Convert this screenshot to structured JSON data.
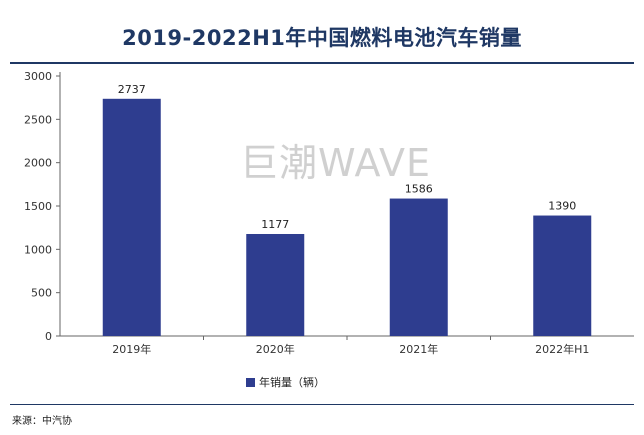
{
  "chart_data": {
    "type": "bar",
    "title": "2019-2022H1年中国燃料电池汽车销量",
    "categories": [
      "2019年",
      "2020年",
      "2021年",
      "2022年H1"
    ],
    "series": [
      {
        "name": "年销量（辆）",
        "values": [
          2737,
          1177,
          1586,
          1390
        ]
      }
    ],
    "ylim": [
      0,
      3000
    ],
    "yticks": [
      0,
      500,
      1000,
      1500,
      2000,
      2500,
      3000
    ],
    "grid": false,
    "legend_position": "bottom",
    "bar_color": "#2e3d8f"
  },
  "watermark": "巨潮WAVE",
  "source": "来源：中汽协"
}
